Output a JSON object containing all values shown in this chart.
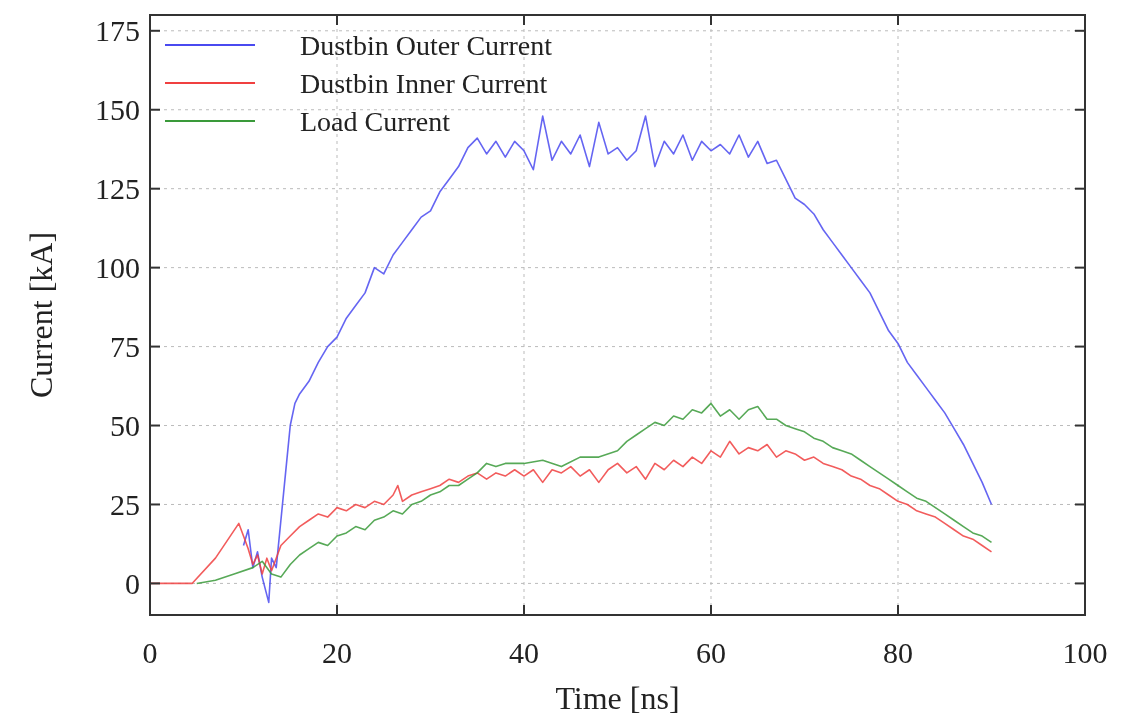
{
  "chart_data": {
    "type": "line",
    "xlabel": "Time [ns]",
    "ylabel": "Current [kA]",
    "xlim": [
      0,
      100
    ],
    "xticks": [
      0,
      20,
      40,
      60,
      80,
      100
    ],
    "ylim": [
      -10,
      180
    ],
    "yticks": [
      0,
      25,
      50,
      75,
      100,
      125,
      150,
      175
    ],
    "grid": true,
    "legend": "top left",
    "line_style": "solid",
    "marker": "none",
    "series": [
      {
        "name": "Dustbin Outer Current",
        "color": "#4a4af0",
        "x": [
          10,
          10.5,
          11,
          11.5,
          12,
          12.7,
          13,
          13.5,
          14,
          14.5,
          15,
          15.5,
          16,
          17,
          18,
          19,
          20,
          21,
          22,
          23,
          24,
          25,
          26,
          27,
          28,
          29,
          30,
          31,
          32,
          33,
          34,
          35,
          36,
          37,
          38,
          39,
          40,
          41,
          42,
          43,
          44,
          45,
          46,
          47,
          48,
          49,
          50,
          51,
          52,
          53,
          54,
          55,
          56,
          57,
          58,
          59,
          60,
          61,
          62,
          63,
          64,
          65,
          66,
          67,
          68,
          69,
          70,
          71,
          72,
          73,
          74,
          75,
          76,
          77,
          78,
          79,
          80,
          81,
          82,
          83,
          84,
          85,
          86,
          87,
          88,
          89,
          90
        ],
        "values": [
          12,
          17,
          5,
          10,
          2,
          -6,
          8,
          5,
          20,
          35,
          50,
          57,
          60,
          64,
          70,
          75,
          78,
          84,
          88,
          92,
          100,
          98,
          104,
          108,
          112,
          116,
          118,
          124,
          128,
          132,
          138,
          141,
          136,
          140,
          135,
          140,
          137,
          131,
          148,
          134,
          140,
          136,
          142,
          132,
          146,
          136,
          138,
          134,
          137,
          148,
          132,
          140,
          136,
          142,
          134,
          140,
          137,
          139,
          136,
          142,
          135,
          140,
          133,
          134,
          128,
          122,
          120,
          117,
          112,
          108,
          104,
          100,
          96,
          92,
          86,
          80,
          76,
          70,
          66,
          62,
          58,
          54,
          49,
          44,
          38,
          32,
          25
        ]
      },
      {
        "name": "Dustbin Inner Current",
        "color": "#f04040",
        "x": [
          0,
          4.5,
          7,
          9.5,
          10,
          10.5,
          11,
          11.5,
          12,
          12.5,
          13,
          13.5,
          14,
          15,
          16,
          17,
          18,
          19,
          20,
          21,
          22,
          23,
          24,
          25,
          26,
          26.5,
          27,
          28,
          29,
          30,
          31,
          32,
          33,
          34,
          35,
          36,
          37,
          38,
          39,
          40,
          41,
          42,
          43,
          44,
          45,
          46,
          47,
          48,
          49,
          50,
          51,
          52,
          53,
          54,
          55,
          56,
          57,
          58,
          59,
          60,
          61,
          62,
          63,
          64,
          65,
          66,
          67,
          68,
          69,
          70,
          71,
          72,
          73,
          74,
          75,
          76,
          77,
          78,
          79,
          80,
          81,
          82,
          83,
          84,
          85,
          86,
          87,
          88,
          89,
          90
        ],
        "values": [
          0,
          0,
          8,
          19,
          15,
          11,
          6,
          9,
          3,
          8,
          4,
          8,
          12,
          15,
          18,
          20,
          22,
          21,
          24,
          23,
          25,
          24,
          26,
          25,
          28,
          31,
          26,
          28,
          29,
          30,
          31,
          33,
          32,
          34,
          35,
          33,
          35,
          34,
          36,
          34,
          36,
          32,
          36,
          35,
          37,
          34,
          36,
          32,
          36,
          38,
          35,
          37,
          33,
          38,
          36,
          39,
          37,
          40,
          38,
          42,
          40,
          45,
          41,
          43,
          42,
          44,
          40,
          42,
          41,
          39,
          40,
          38,
          37,
          36,
          34,
          33,
          31,
          30,
          28,
          26,
          25,
          23,
          22,
          21,
          19,
          17,
          15,
          14,
          12,
          10
        ]
      },
      {
        "name": "Load Current",
        "color": "#3a9a3a",
        "x": [
          5,
          7,
          9,
          11,
          12,
          13,
          14,
          15,
          16,
          17,
          18,
          19,
          20,
          21,
          22,
          23,
          24,
          25,
          26,
          27,
          28,
          29,
          30,
          31,
          32,
          33,
          34,
          35,
          36,
          37,
          38,
          40,
          42,
          44,
          46,
          48,
          50,
          51,
          52,
          53,
          54,
          55,
          56,
          57,
          58,
          59,
          60,
          61,
          62,
          63,
          64,
          65,
          66,
          67,
          68,
          69,
          70,
          71,
          72,
          73,
          74,
          75,
          76,
          77,
          78,
          79,
          80,
          81,
          82,
          83,
          84,
          85,
          86,
          87,
          88,
          89,
          90
        ],
        "values": [
          0,
          1,
          3,
          5,
          7,
          3,
          2,
          6,
          9,
          11,
          13,
          12,
          15,
          16,
          18,
          17,
          20,
          21,
          23,
          22,
          25,
          26,
          28,
          29,
          31,
          31,
          33,
          35,
          38,
          37,
          38,
          38,
          39,
          37,
          40,
          40,
          42,
          45,
          47,
          49,
          51,
          50,
          53,
          52,
          55,
          54,
          57,
          53,
          55,
          52,
          55,
          56,
          52,
          52,
          50,
          49,
          48,
          46,
          45,
          43,
          42,
          41,
          39,
          37,
          35,
          33,
          31,
          29,
          27,
          26,
          24,
          22,
          20,
          18,
          16,
          15,
          13
        ]
      }
    ]
  }
}
